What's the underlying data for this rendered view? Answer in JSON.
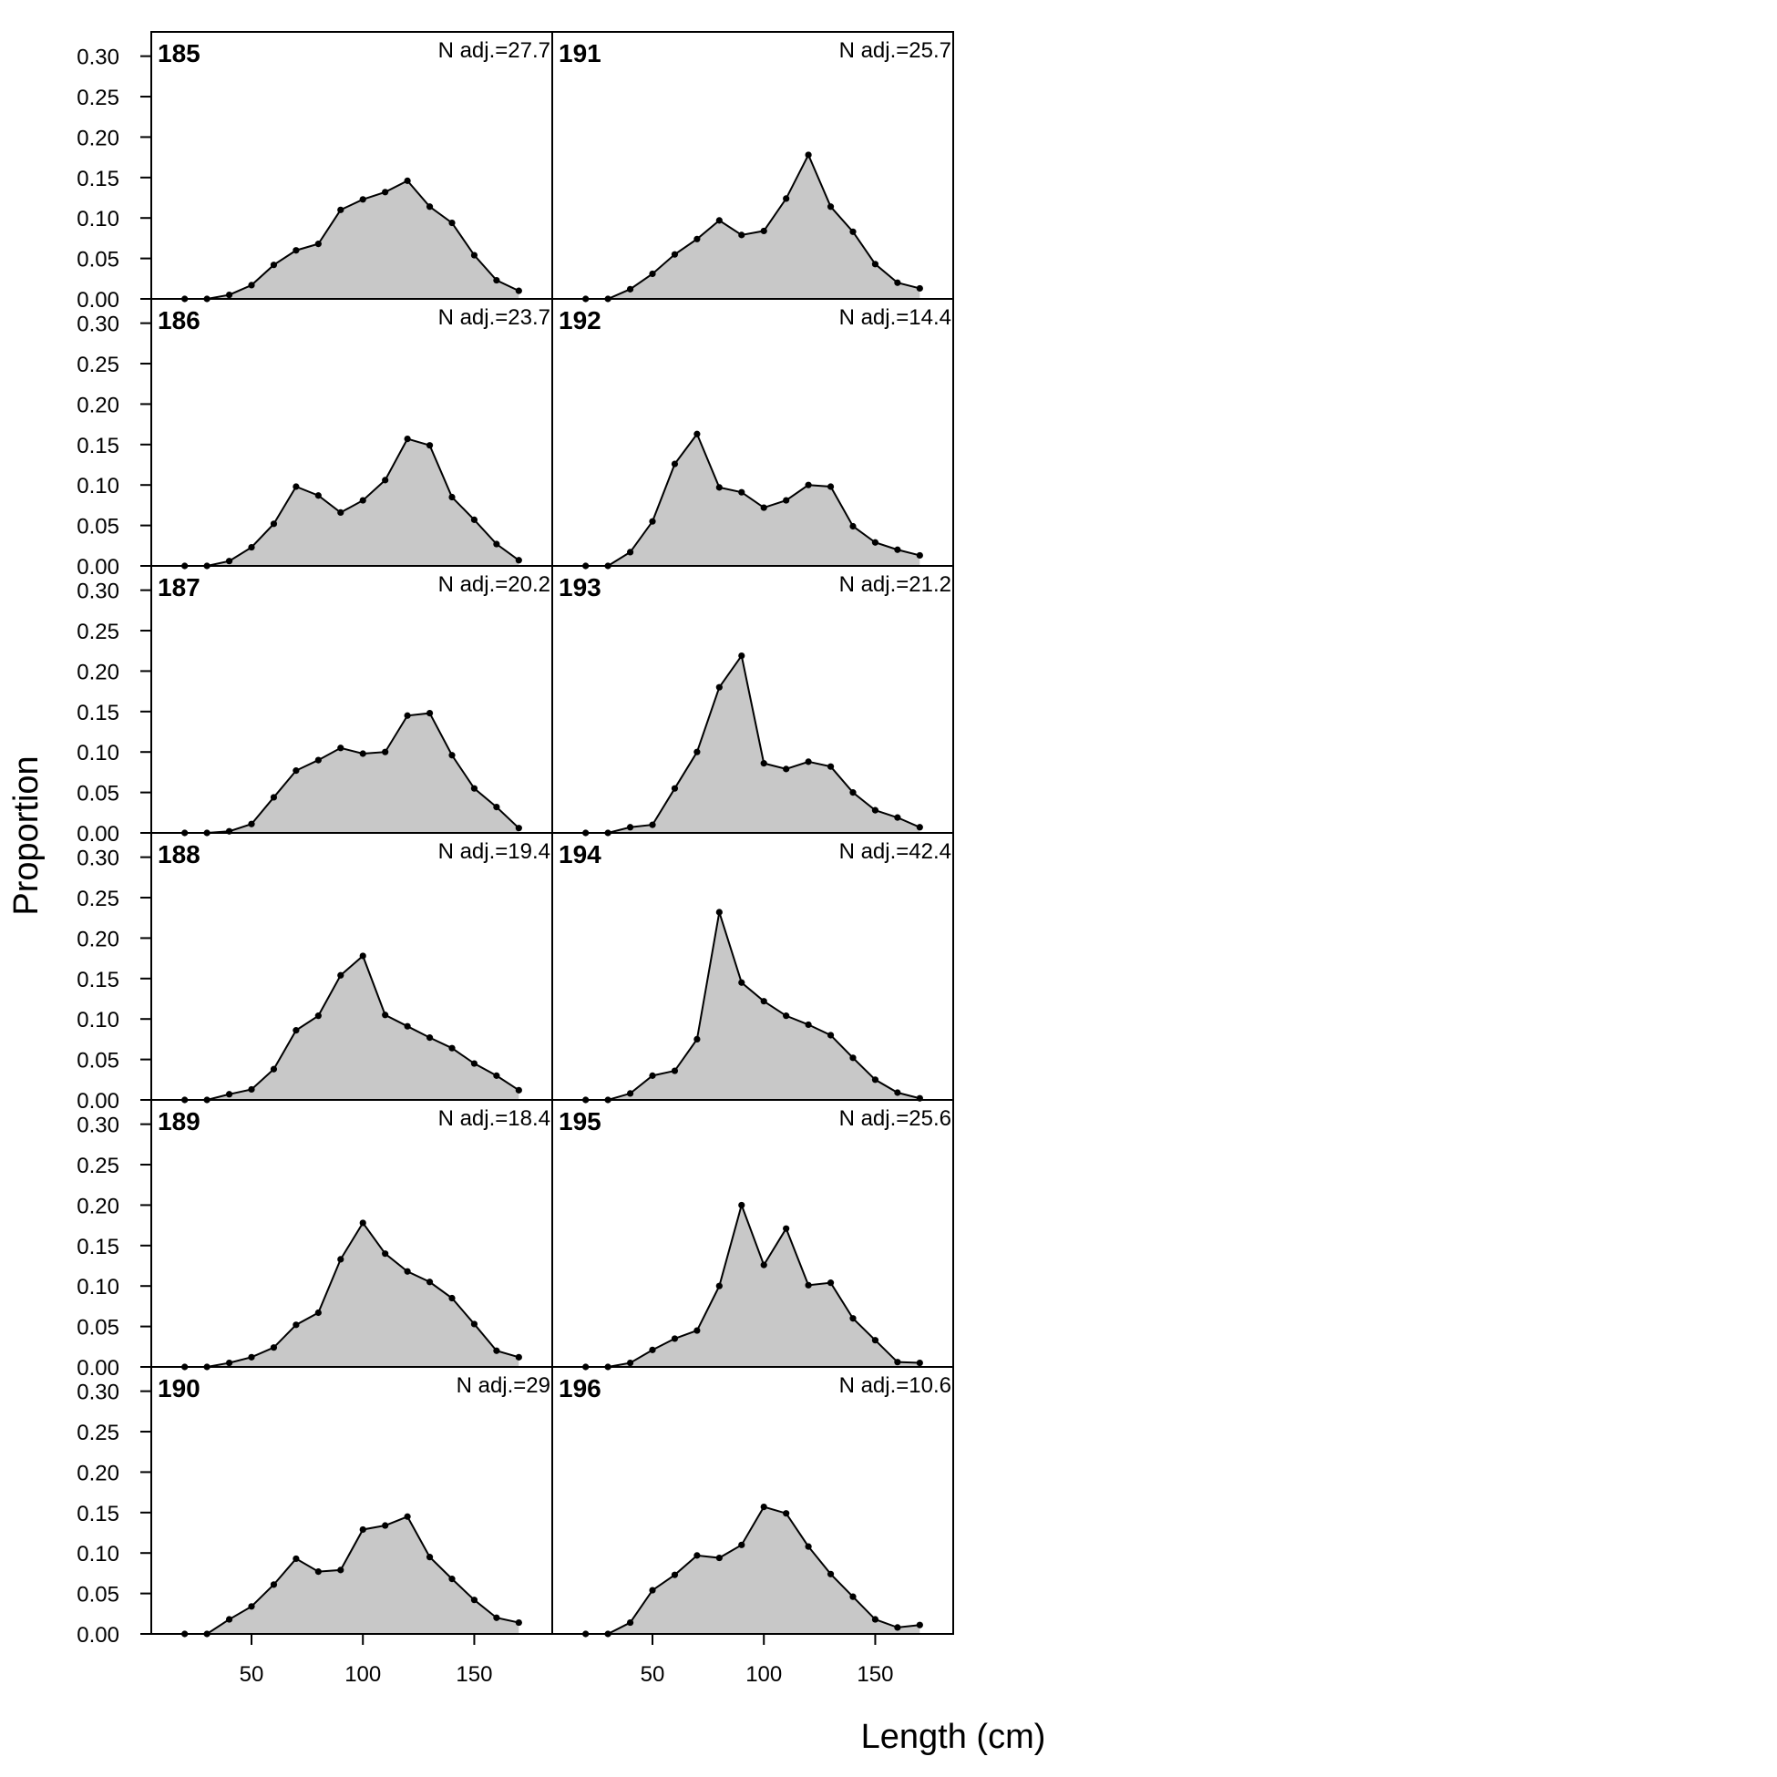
{
  "figure": {
    "ylabel": "Proportion",
    "xlabel": "Length (cm)"
  },
  "chart_data": {
    "type": "area",
    "layout": "6 rows x 2 columns, shared axes",
    "xlim": [
      5,
      185
    ],
    "ylim": [
      0,
      0.33
    ],
    "xticks": [
      50,
      100,
      150
    ],
    "yticks": [
      0,
      0.05,
      0.1,
      0.15,
      0.2,
      0.25,
      0.3
    ],
    "ytick_labels": [
      "0.00",
      "0.05",
      "0.10",
      "0.15",
      "0.20",
      "0.25",
      "0.30"
    ],
    "xtick_labels": [
      "50",
      "100",
      "150"
    ],
    "fill_color": "#c8c8c8",
    "line_color": "#000000",
    "x": [
      20,
      30,
      40,
      50,
      60,
      70,
      80,
      90,
      100,
      110,
      120,
      130,
      140,
      150,
      160,
      170
    ],
    "panels": [
      {
        "label": "185",
        "nadj": "N adj.=27.7",
        "values": [
          0.0,
          0.0,
          0.005,
          0.017,
          0.042,
          0.06,
          0.068,
          0.11,
          0.123,
          0.132,
          0.146,
          0.114,
          0.094,
          0.054,
          0.023,
          0.01
        ]
      },
      {
        "label": "186",
        "nadj": "N adj.=23.7",
        "values": [
          0.0,
          0.0,
          0.006,
          0.023,
          0.052,
          0.098,
          0.087,
          0.066,
          0.081,
          0.106,
          0.157,
          0.149,
          0.085,
          0.057,
          0.027,
          0.007
        ]
      },
      {
        "label": "187",
        "nadj": "N adj.=20.2",
        "values": [
          0.0,
          0.0,
          0.002,
          0.011,
          0.044,
          0.077,
          0.09,
          0.105,
          0.098,
          0.1,
          0.145,
          0.148,
          0.096,
          0.055,
          0.032,
          0.006
        ]
      },
      {
        "label": "188",
        "nadj": "N adj.=19.4",
        "values": [
          0.0,
          0.0,
          0.007,
          0.013,
          0.038,
          0.086,
          0.104,
          0.154,
          0.178,
          0.105,
          0.091,
          0.077,
          0.064,
          0.045,
          0.03,
          0.012
        ]
      },
      {
        "label": "189",
        "nadj": "N adj.=18.4",
        "values": [
          0.0,
          0.0,
          0.005,
          0.012,
          0.024,
          0.052,
          0.067,
          0.133,
          0.178,
          0.14,
          0.118,
          0.105,
          0.085,
          0.053,
          0.02,
          0.012
        ]
      },
      {
        "label": "190",
        "nadj": "N adj.=29",
        "values": [
          0.0,
          0.0,
          0.018,
          0.034,
          0.061,
          0.093,
          0.077,
          0.079,
          0.129,
          0.134,
          0.145,
          0.095,
          0.068,
          0.042,
          0.02,
          0.014
        ]
      },
      {
        "label": "191",
        "nadj": "N adj.=25.7",
        "values": [
          0.0,
          0.0,
          0.012,
          0.031,
          0.055,
          0.074,
          0.097,
          0.079,
          0.084,
          0.124,
          0.178,
          0.114,
          0.083,
          0.043,
          0.02,
          0.013
        ]
      },
      {
        "label": "192",
        "nadj": "N adj.=14.4",
        "values": [
          0.0,
          0.0,
          0.017,
          0.055,
          0.126,
          0.163,
          0.097,
          0.091,
          0.072,
          0.081,
          0.1,
          0.098,
          0.049,
          0.029,
          0.02,
          0.013
        ]
      },
      {
        "label": "193",
        "nadj": "N adj.=21.2",
        "values": [
          0.0,
          0.0,
          0.007,
          0.01,
          0.055,
          0.1,
          0.18,
          0.219,
          0.086,
          0.079,
          0.088,
          0.082,
          0.05,
          0.028,
          0.019,
          0.007
        ]
      },
      {
        "label": "194",
        "nadj": "N adj.=42.4",
        "values": [
          0.0,
          0.0,
          0.008,
          0.03,
          0.036,
          0.075,
          0.232,
          0.145,
          0.122,
          0.104,
          0.093,
          0.08,
          0.052,
          0.025,
          0.009,
          0.002
        ]
      },
      {
        "label": "195",
        "nadj": "N adj.=25.6",
        "values": [
          0.0,
          0.0,
          0.005,
          0.021,
          0.035,
          0.045,
          0.1,
          0.2,
          0.126,
          0.171,
          0.101,
          0.104,
          0.06,
          0.033,
          0.006,
          0.005
        ]
      },
      {
        "label": "196",
        "nadj": "N adj.=10.6",
        "values": [
          0.0,
          0.0,
          0.014,
          0.054,
          0.073,
          0.097,
          0.094,
          0.11,
          0.157,
          0.149,
          0.108,
          0.074,
          0.046,
          0.018,
          0.008,
          0.011
        ]
      }
    ]
  }
}
